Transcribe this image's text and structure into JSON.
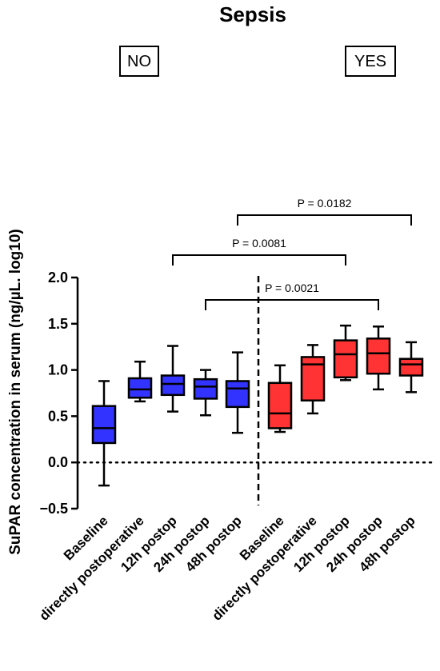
{
  "chart_data": {
    "type": "box",
    "title": "Sepsis",
    "groups": [
      {
        "label": "NO",
        "color": "#3333ff"
      },
      {
        "label": "YES",
        "color": "#ff3333"
      }
    ],
    "ylabel": "SuPAR concentration in serum (ng/µL. log10)",
    "xlabel": "",
    "ylim": [
      -0.5,
      2.0
    ],
    "yticks": [
      "2.0",
      "1.5",
      "1.0",
      "0.5",
      "0.0",
      "−0.5"
    ],
    "reference_line_y": 0.0,
    "categories": [
      "Baseline",
      "directly postoperative",
      "12h postop",
      "24h postop",
      "48h postop",
      "Baseline",
      "directly postoperative",
      "12h postop",
      "24h postop",
      "48h postop"
    ],
    "boxes": [
      {
        "group": 0,
        "min": -0.25,
        "q1": 0.21,
        "median": 0.37,
        "q3": 0.61,
        "max": 0.88
      },
      {
        "group": 0,
        "min": 0.66,
        "q1": 0.7,
        "median": 0.79,
        "q3": 0.91,
        "max": 1.09
      },
      {
        "group": 0,
        "min": 0.55,
        "q1": 0.73,
        "median": 0.85,
        "q3": 0.94,
        "max": 1.26
      },
      {
        "group": 0,
        "min": 0.51,
        "q1": 0.69,
        "median": 0.82,
        "q3": 0.9,
        "max": 1.0
      },
      {
        "group": 0,
        "min": 0.32,
        "q1": 0.6,
        "median": 0.8,
        "q3": 0.88,
        "max": 1.19
      },
      {
        "group": 1,
        "min": 0.33,
        "q1": 0.37,
        "median": 0.53,
        "q3": 0.86,
        "max": 1.05
      },
      {
        "group": 1,
        "min": 0.53,
        "q1": 0.67,
        "median": 1.06,
        "q3": 1.14,
        "max": 1.27
      },
      {
        "group": 1,
        "min": 0.89,
        "q1": 0.92,
        "median": 1.17,
        "q3": 1.32,
        "max": 1.48
      },
      {
        "group": 1,
        "min": 0.79,
        "q1": 0.96,
        "median": 1.18,
        "q3": 1.34,
        "max": 1.47
      },
      {
        "group": 1,
        "min": 0.76,
        "q1": 0.94,
        "median": 1.06,
        "q3": 1.12,
        "max": 1.3
      }
    ],
    "comparisons": [
      {
        "from": 4,
        "to": 9,
        "label": "P = 0.0182"
      },
      {
        "from": 2,
        "to": 7,
        "label": "P = 0.0081"
      },
      {
        "from": 3,
        "to": 8,
        "label": "P = 0.0021"
      }
    ]
  }
}
